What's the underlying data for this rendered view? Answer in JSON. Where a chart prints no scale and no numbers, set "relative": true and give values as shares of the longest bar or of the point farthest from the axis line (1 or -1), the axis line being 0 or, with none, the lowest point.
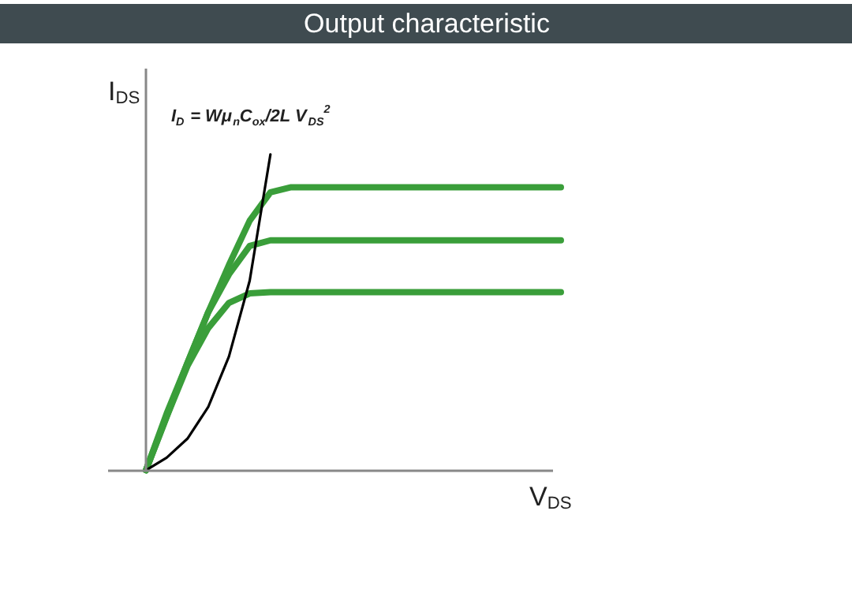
{
  "chart_data": {
    "type": "line",
    "title": "Output characteristic",
    "xlabel": "V$_{DS}$",
    "ylabel": "I$_{DS}$",
    "relative": true,
    "annotations": [
      "I$_{D}$ = Wμ$_{n}$C$_{ox}$/2L V$_{DS}$$^{2}$"
    ],
    "categories": [
      null,
      null,
      null,
      null,
      null,
      null,
      null,
      null,
      null,
      null,
      null,
      null,
      null,
      null,
      null,
      null,
      null,
      null,
      null,
      null,
      null
    ],
    "series": [
      {
        "color": "#3a9e3a",
        "values": [
          0,
          0.17,
          0.34,
          0.5,
          0.65,
          0.79,
          0.88,
          0.896,
          0.896,
          0.896,
          0.896,
          0.896,
          0.896,
          0.896,
          0.896,
          0.896,
          0.896,
          0.896,
          0.896,
          0.896,
          0.896
        ]
      },
      {
        "color": "#3a9e3a",
        "values": [
          0,
          0.18,
          0.34,
          0.5,
          0.62,
          0.71,
          0.728,
          0.728,
          0.728,
          0.728,
          0.728,
          0.728,
          0.728,
          0.728,
          0.728,
          0.728,
          0.728,
          0.728,
          0.728,
          0.728,
          0.728
        ]
      },
      {
        "color": "#3a9e3a",
        "values": [
          0,
          0.17,
          0.33,
          0.45,
          0.53,
          0.56,
          0.564,
          0.564,
          0.564,
          0.564,
          0.564,
          0.564,
          0.564,
          0.564,
          0.564,
          0.564,
          0.564,
          0.564,
          0.564,
          0.564,
          0.564
        ]
      },
      {
        "color": "#000000",
        "values": [
          0,
          0.04,
          0.1,
          0.2,
          0.36,
          0.6,
          1,
          null,
          null,
          null,
          null,
          null,
          null,
          null,
          null,
          null,
          null,
          null,
          null,
          null,
          null
        ]
      }
    ]
  }
}
